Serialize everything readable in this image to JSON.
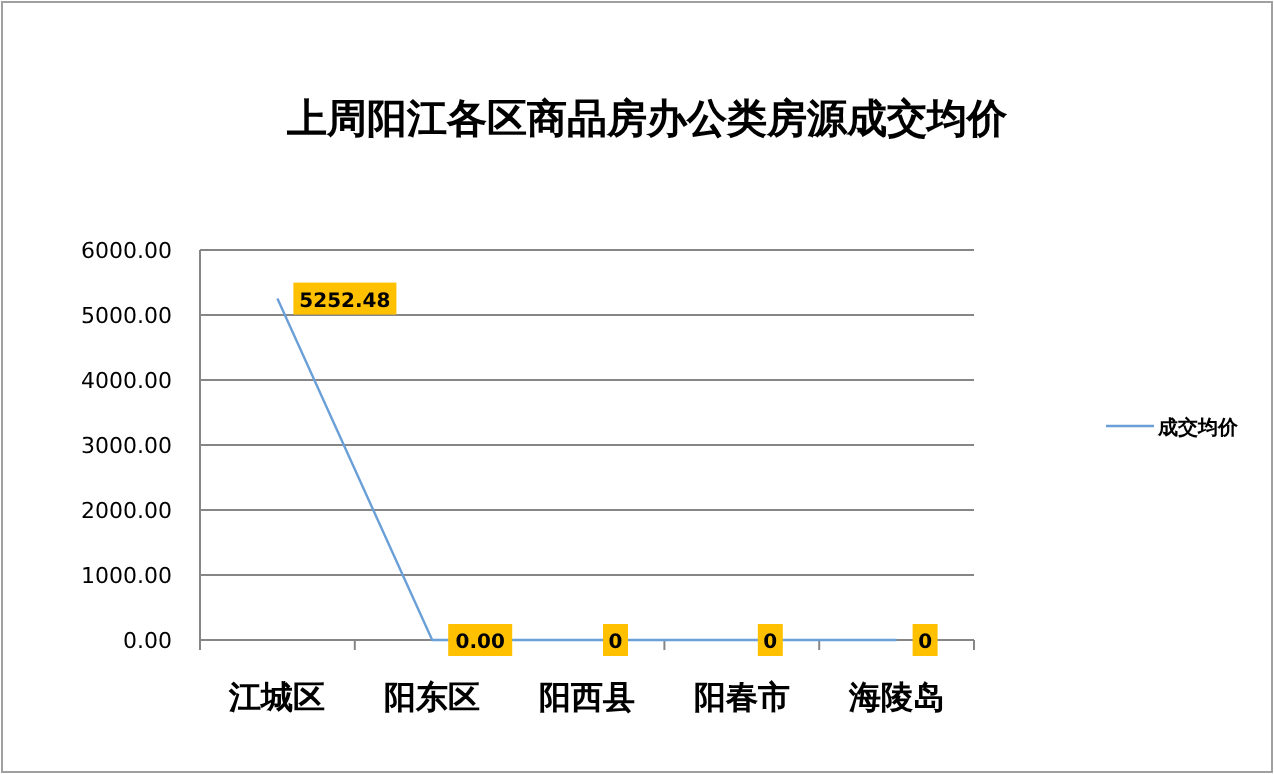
{
  "chart_data": {
    "type": "line",
    "title": "上周阳江各区商品房办公类房源成交均价",
    "categories": [
      "江城区",
      "阳东区",
      "阳西县",
      "阳春市",
      "海陵岛"
    ],
    "series": [
      {
        "name": "成交均价",
        "color": "#6a9fd8",
        "values": [
          5252.48,
          0,
          0,
          0,
          0
        ],
        "value_labels": [
          "5252.48",
          "0.00",
          "0",
          "0",
          "0"
        ]
      }
    ],
    "ylim": [
      0,
      6000
    ],
    "yticks": [
      {
        "value": 0,
        "label": "0.00"
      },
      {
        "value": 1000,
        "label": "1000.00"
      },
      {
        "value": 2000,
        "label": "2000.00"
      },
      {
        "value": 3000,
        "label": "3000.00"
      },
      {
        "value": 4000,
        "label": "4000.00"
      },
      {
        "value": 5000,
        "label": "5000.00"
      },
      {
        "value": 6000,
        "label": "6000.00"
      }
    ],
    "grid": "y",
    "legend": "right",
    "marker": "none",
    "line_style": "solid"
  }
}
